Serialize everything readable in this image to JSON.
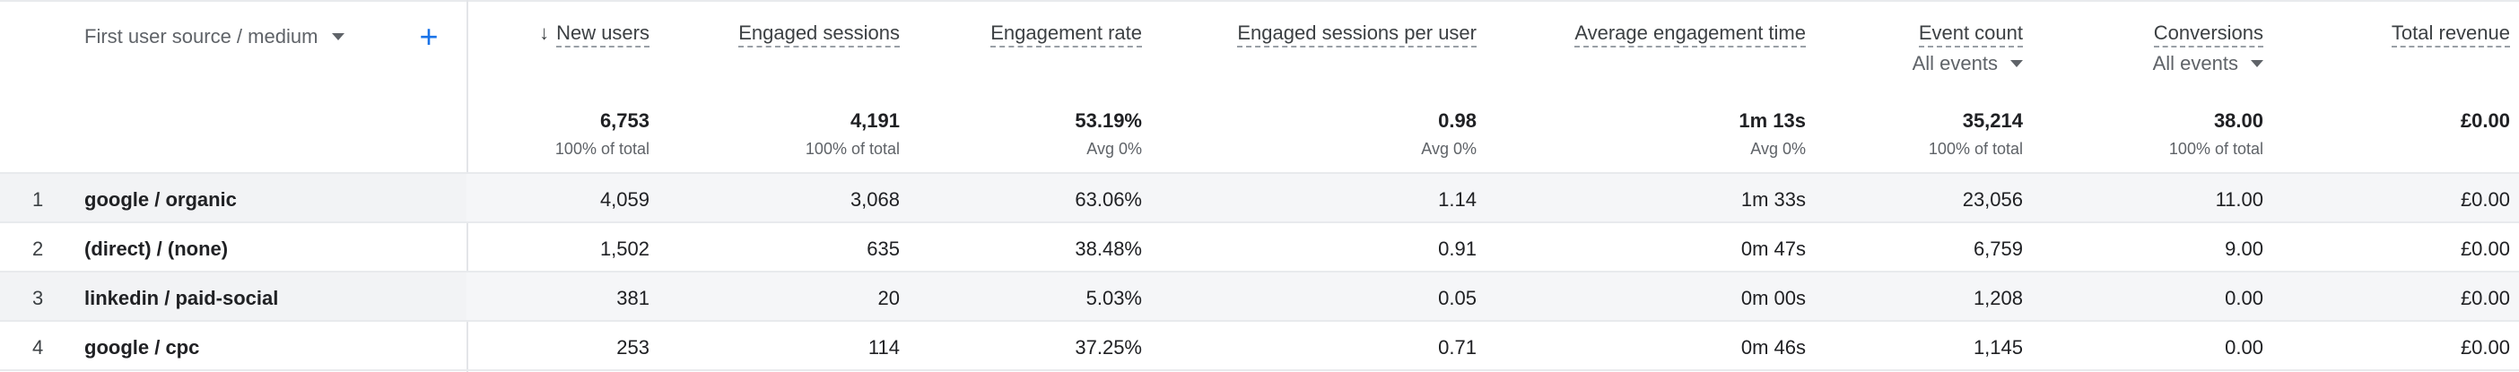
{
  "dimension": {
    "label": "First user source / medium",
    "add_icon": "+"
  },
  "metrics": [
    {
      "label": "New users",
      "sorted_desc": true,
      "sort_icon": "↓"
    },
    {
      "label": "Engaged sessions"
    },
    {
      "label": "Engagement rate"
    },
    {
      "label": "Engaged sessions per user"
    },
    {
      "label": "Average engagement time"
    },
    {
      "label": "Event count",
      "sub": "All events"
    },
    {
      "label": "Conversions",
      "sub": "All events"
    },
    {
      "label": "Total revenue"
    }
  ],
  "totals": [
    {
      "value": "6,753",
      "sub": "100% of total"
    },
    {
      "value": "4,191",
      "sub": "100% of total"
    },
    {
      "value": "53.19%",
      "sub": "Avg 0%"
    },
    {
      "value": "0.98",
      "sub": "Avg 0%"
    },
    {
      "value": "1m 13s",
      "sub": "Avg 0%"
    },
    {
      "value": "35,214",
      "sub": "100% of total"
    },
    {
      "value": "38.00",
      "sub": "100% of total"
    },
    {
      "value": "£0.00"
    }
  ],
  "rows": [
    {
      "num": "1",
      "dim": "google / organic",
      "cells": [
        "4,059",
        "3,068",
        "63.06%",
        "1.14",
        "1m 33s",
        "23,056",
        "11.00",
        "£0.00"
      ]
    },
    {
      "num": "2",
      "dim": "(direct) / (none)",
      "cells": [
        "1,502",
        "635",
        "38.48%",
        "0.91",
        "0m 47s",
        "6,759",
        "9.00",
        "£0.00"
      ]
    },
    {
      "num": "3",
      "dim": "linkedin / paid-social",
      "cells": [
        "381",
        "20",
        "5.03%",
        "0.05",
        "0m 00s",
        "1,208",
        "0.00",
        "£0.00"
      ]
    },
    {
      "num": "4",
      "dim": "google / cpc",
      "cells": [
        "253",
        "114",
        "37.25%",
        "0.71",
        "0m 46s",
        "1,145",
        "0.00",
        "£0.00"
      ]
    }
  ]
}
